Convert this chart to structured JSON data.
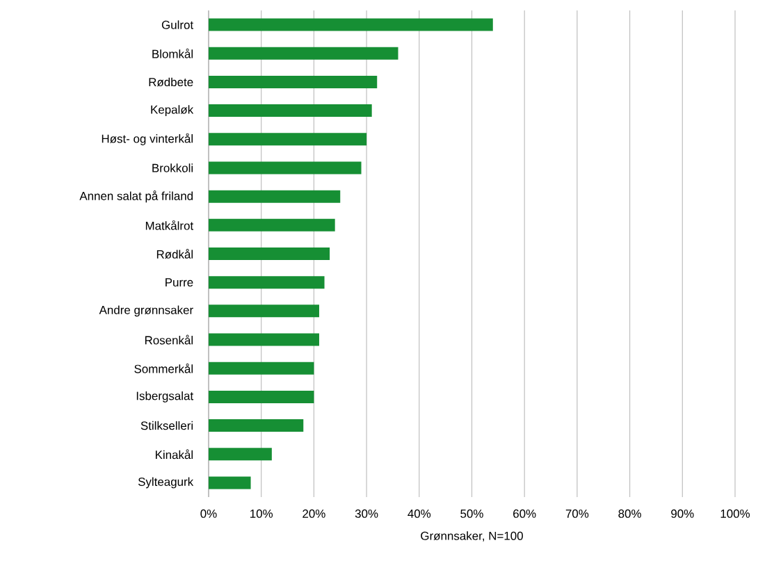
{
  "chart_data": {
    "type": "bar",
    "orientation": "horizontal",
    "xlabel": "Grønnsaker, N=100",
    "categories": [
      "Gulrot",
      "Blomkål",
      "Rødbete",
      "Kepaløk",
      "Høst-  og vinterkål",
      "Brokkoli",
      "Annen salat på friland",
      "Matkålrot",
      "Rødkål",
      "Purre",
      "Andre grønnsaker",
      "Rosenkål",
      "Sommerkål",
      "Isbergsalat",
      "Stilkselleri",
      "Kinakål",
      "Sylteagurk"
    ],
    "values": [
      54,
      36,
      32,
      31,
      30,
      29,
      25,
      24,
      23,
      22,
      21,
      21,
      20,
      20,
      18,
      12,
      8
    ],
    "color": "#168f34",
    "xlim": [
      0,
      100
    ],
    "xticks": [
      {
        "value": 0,
        "label": "0%"
      },
      {
        "value": 10,
        "label": "10%"
      },
      {
        "value": 20,
        "label": "20%"
      },
      {
        "value": 30,
        "label": "30%"
      },
      {
        "value": 40,
        "label": "40%"
      },
      {
        "value": 50,
        "label": "50%"
      },
      {
        "value": 60,
        "label": "60%"
      },
      {
        "value": 70,
        "label": "70%"
      },
      {
        "value": 80,
        "label": "80%"
      },
      {
        "value": 90,
        "label": "90%"
      },
      {
        "value": 100,
        "label": "100%"
      }
    ],
    "grid": "x"
  }
}
